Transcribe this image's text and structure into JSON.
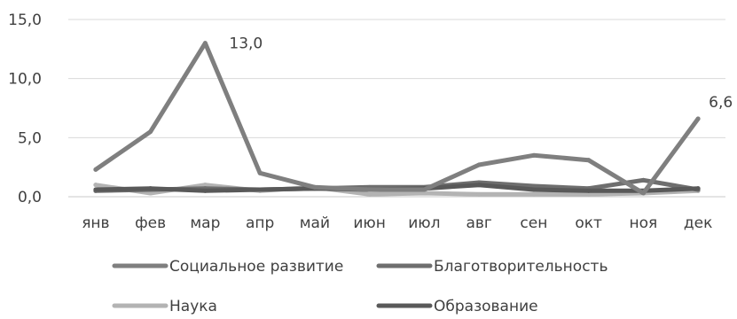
{
  "chart_data": {
    "type": "line",
    "categories": [
      "янв",
      "фев",
      "мар",
      "апр",
      "май",
      "июн",
      "июл",
      "авг",
      "сен",
      "окт",
      "ноя",
      "дек"
    ],
    "ylim": [
      0,
      15
    ],
    "y_ticks": [
      "0,0",
      "5,0",
      "10,0",
      "15,0"
    ],
    "grid": true,
    "legend_position": "bottom",
    "series": [
      {
        "name": "Социальное развитие",
        "color": "#7f7f7f",
        "values": [
          2.3,
          5.5,
          13.0,
          2.0,
          0.8,
          0.6,
          0.6,
          2.7,
          3.5,
          3.1,
          0.3,
          6.6
        ]
      },
      {
        "name": "Благотворительность",
        "color": "#6e6e6e",
        "values": [
          0.5,
          0.6,
          0.7,
          0.6,
          0.7,
          0.8,
          0.8,
          1.2,
          0.9,
          0.7,
          1.4,
          0.6
        ]
      },
      {
        "name": "Наука",
        "color": "#b3b3b3",
        "values": [
          1.0,
          0.3,
          1.0,
          0.5,
          0.8,
          0.2,
          0.3,
          0.2,
          0.2,
          0.2,
          0.3,
          0.5
        ]
      },
      {
        "name": "Образование",
        "color": "#595959",
        "values": [
          0.6,
          0.7,
          0.5,
          0.6,
          0.7,
          0.6,
          0.7,
          1.0,
          0.6,
          0.5,
          0.5,
          0.7
        ]
      }
    ],
    "data_labels": [
      {
        "series": 0,
        "index": 2,
        "text": "13,0"
      },
      {
        "series": 0,
        "index": 11,
        "text": "6,6"
      }
    ]
  }
}
